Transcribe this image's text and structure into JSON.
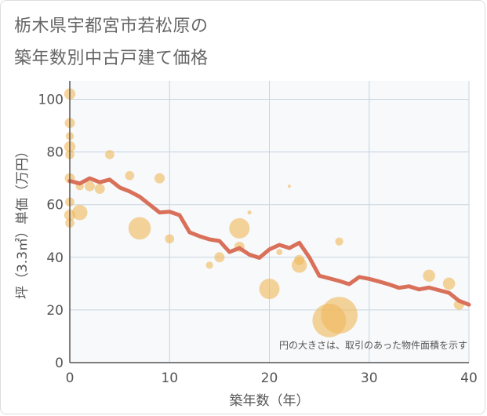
{
  "title_lines": [
    "栃木県宇都宮市若松原の",
    "築年数別中古戸建て価格"
  ],
  "chart_data": {
    "type": "scatter",
    "title": "栃木県宇都宮市若松原の築年数別中古戸建て価格",
    "xlabel": "築年数（年）",
    "ylabel": "坪（3.3㎡）単価（万円）",
    "xlim": [
      0,
      40
    ],
    "ylim": [
      0,
      107
    ],
    "xticks": [
      0,
      10,
      20,
      30,
      40
    ],
    "yticks": [
      0,
      20,
      40,
      60,
      80,
      100
    ],
    "grid": true,
    "note": "円の大きさは、取引のあった物件面積を示す",
    "colors": {
      "bubble": "#f0b85a",
      "line": "#d9705a",
      "grid": "#c8d4e0",
      "plot_bg": "#f7f9fb"
    },
    "bubbles": [
      {
        "x": 0,
        "y": 102,
        "s": 1.1
      },
      {
        "x": 0,
        "y": 91,
        "s": 1.0
      },
      {
        "x": 0,
        "y": 86,
        "s": 0.8
      },
      {
        "x": 0,
        "y": 82,
        "s": 1.1
      },
      {
        "x": 0,
        "y": 79,
        "s": 0.9
      },
      {
        "x": 0,
        "y": 70,
        "s": 1.0
      },
      {
        "x": 0,
        "y": 61,
        "s": 0.9
      },
      {
        "x": 0,
        "y": 56,
        "s": 1.1
      },
      {
        "x": 0,
        "y": 53,
        "s": 0.9
      },
      {
        "x": 1,
        "y": 67,
        "s": 0.8
      },
      {
        "x": 1,
        "y": 57,
        "s": 1.5
      },
      {
        "x": 2,
        "y": 67,
        "s": 1.0
      },
      {
        "x": 3,
        "y": 66,
        "s": 1.0
      },
      {
        "x": 4,
        "y": 79,
        "s": 0.9
      },
      {
        "x": 6,
        "y": 71,
        "s": 0.9
      },
      {
        "x": 7,
        "y": 51,
        "s": 2.2
      },
      {
        "x": 9,
        "y": 70,
        "s": 1.0
      },
      {
        "x": 10,
        "y": 47,
        "s": 0.9
      },
      {
        "x": 14,
        "y": 37,
        "s": 0.7
      },
      {
        "x": 15,
        "y": 40,
        "s": 1.0
      },
      {
        "x": 17,
        "y": 51,
        "s": 2.0
      },
      {
        "x": 17,
        "y": 44,
        "s": 1.0
      },
      {
        "x": 18,
        "y": 57,
        "s": 0.4
      },
      {
        "x": 20,
        "y": 28,
        "s": 2.0
      },
      {
        "x": 21,
        "y": 42,
        "s": 0.6
      },
      {
        "x": 22,
        "y": 67,
        "s": 0.3
      },
      {
        "x": 23,
        "y": 37,
        "s": 1.5
      },
      {
        "x": 23,
        "y": 39,
        "s": 1.0
      },
      {
        "x": 26,
        "y": 16,
        "s": 3.3
      },
      {
        "x": 27,
        "y": 18,
        "s": 3.6
      },
      {
        "x": 27,
        "y": 46,
        "s": 0.8
      },
      {
        "x": 36,
        "y": 33,
        "s": 1.2
      },
      {
        "x": 38,
        "y": 30,
        "s": 1.2
      },
      {
        "x": 39,
        "y": 22,
        "s": 1.0
      }
    ],
    "line": {
      "x": [
        0,
        1,
        2,
        3,
        4,
        5,
        6,
        7,
        8,
        9,
        10,
        11,
        12,
        13,
        14,
        15,
        16,
        17,
        18,
        19,
        20,
        21,
        22,
        23,
        24,
        25,
        26,
        27,
        28,
        29,
        30,
        31,
        32,
        33,
        34,
        35,
        36,
        37,
        38,
        39,
        40
      ],
      "y": [
        69,
        68,
        70,
        68.5,
        69.5,
        66.5,
        65,
        63,
        60,
        57,
        57.3,
        56,
        49.5,
        48,
        46.8,
        46.2,
        42,
        43.5,
        41,
        39.8,
        43,
        44.7,
        43.5,
        45.5,
        40,
        33,
        32,
        31,
        29.8,
        32.5,
        31.8,
        30.8,
        29.7,
        28.4,
        29,
        27.8,
        28.5,
        27.5,
        26.5,
        23.5,
        22
      ]
    }
  }
}
